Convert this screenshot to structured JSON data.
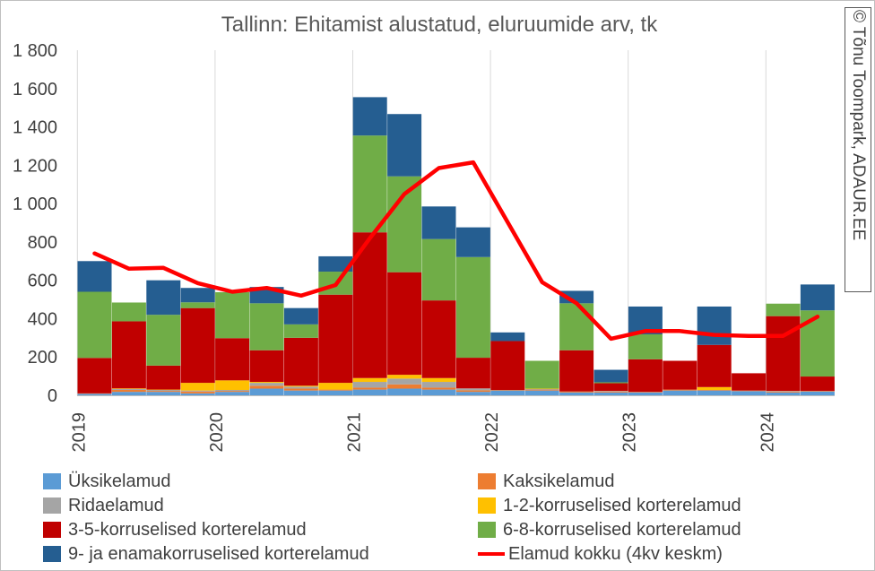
{
  "chart_data": {
    "type": "bar",
    "stacked": true,
    "title": "Tallinn: Ehitamist alustatud, eluruumide arv, tk",
    "watermark": "© Tõnu Toompark, ADAUR.EE",
    "ylim": [
      0,
      1800
    ],
    "yticks": [
      0,
      200,
      400,
      600,
      800,
      1000,
      1200,
      1400,
      1600,
      1800
    ],
    "ytick_labels": [
      "0",
      "200",
      "400",
      "600",
      "800",
      "1 000",
      "1 200",
      "1 400",
      "1 600",
      "1 800"
    ],
    "xtick_labels": [
      "2019",
      "2020",
      "2021",
      "2022",
      "2023",
      "2024"
    ],
    "grid": "vertical year lines",
    "legend_position": "bottom",
    "categories": [
      "2019 Q1",
      "2019 Q2",
      "2019 Q3",
      "2019 Q4",
      "2020 Q1",
      "2020 Q2",
      "2020 Q3",
      "2020 Q4",
      "2021 Q1",
      "2021 Q2",
      "2021 Q3",
      "2021 Q4",
      "2022 Q1",
      "2022 Q2",
      "2022 Q3",
      "2022 Q4",
      "2023 Q1",
      "2023 Q2",
      "2023 Q3",
      "2023 Q4",
      "2024 Q1",
      "2024 Q2"
    ],
    "series": [
      {
        "name": "Üksikelamud",
        "color": "#5b9bd5",
        "values": [
          8,
          18,
          18,
          10,
          18,
          35,
          25,
          25,
          30,
          35,
          30,
          18,
          25,
          25,
          15,
          15,
          15,
          25,
          25,
          22,
          15,
          20
        ]
      },
      {
        "name": "Kaksikelamud",
        "color": "#ed7d31",
        "values": [
          2,
          10,
          5,
          10,
          5,
          15,
          10,
          5,
          10,
          22,
          10,
          8,
          3,
          5,
          5,
          5,
          3,
          5,
          3,
          3,
          5,
          3
        ]
      },
      {
        "name": "Ridaelamud",
        "color": "#a5a5a5",
        "values": [
          0,
          5,
          5,
          5,
          5,
          15,
          10,
          0,
          30,
          30,
          30,
          10,
          0,
          3,
          0,
          3,
          0,
          0,
          0,
          0,
          3,
          0
        ]
      },
      {
        "name": "1-2-korruselised korterelamud",
        "color": "#ffc000",
        "values": [
          0,
          3,
          2,
          40,
          50,
          5,
          5,
          35,
          20,
          20,
          20,
          0,
          0,
          2,
          0,
          0,
          0,
          0,
          15,
          0,
          0,
          0
        ]
      },
      {
        "name": "3-5-korruselised korterelamud",
        "color": "#c00000",
        "values": [
          185,
          350,
          125,
          390,
          220,
          165,
          250,
          460,
          760,
          535,
          405,
          160,
          255,
          0,
          215,
          40,
          170,
          150,
          220,
          90,
          390,
          75
        ]
      },
      {
        "name": "6-8-korruselised korterelamud",
        "color": "#70ad47",
        "values": [
          345,
          98,
          265,
          30,
          240,
          245,
          70,
          120,
          505,
          500,
          320,
          525,
          0,
          145,
          245,
          5,
          130,
          0,
          0,
          0,
          65,
          345
        ]
      },
      {
        "name": "9- ja enamakorruselised korterelamud",
        "color": "#255e91",
        "values": [
          160,
          0,
          180,
          75,
          0,
          85,
          85,
          80,
          200,
          325,
          170,
          155,
          45,
          0,
          65,
          65,
          145,
          0,
          200,
          0,
          0,
          135
        ]
      }
    ],
    "line_series": {
      "name": "Elamud kokku (4kv keskm)",
      "color": "#ff0000",
      "values": [
        740,
        660,
        665,
        585,
        540,
        560,
        520,
        575,
        820,
        1050,
        1185,
        1215,
        null,
        590,
        480,
        295,
        335,
        335,
        315,
        310,
        310,
        410
      ]
    }
  }
}
